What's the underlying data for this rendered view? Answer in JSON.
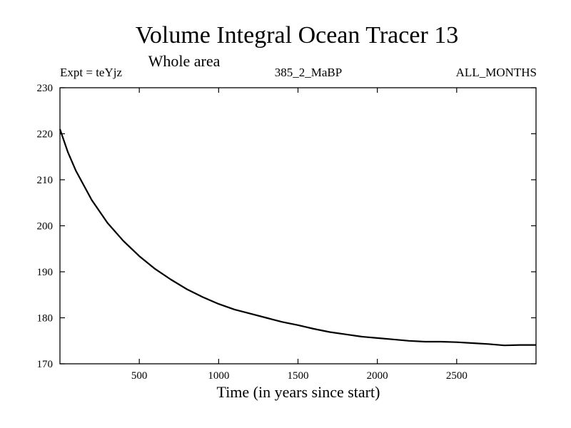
{
  "chart_data": {
    "type": "line",
    "title": "Volume Integral Ocean Tracer 13",
    "subtitle": "Whole area",
    "annotations": {
      "experiment": "Expt = teYjz",
      "run": "385_2_MaBP",
      "months": "ALL_MONTHS"
    },
    "xlabel": "Time (in years since start)",
    "ylabel": "",
    "xlim": [
      0,
      3000
    ],
    "ylim": [
      170,
      230
    ],
    "x_ticks": [
      500,
      1000,
      1500,
      2000,
      2500
    ],
    "y_ticks": [
      170,
      180,
      190,
      200,
      210,
      220,
      230
    ],
    "grid": false,
    "series": [
      {
        "name": "Tracer 13",
        "color": "#000000",
        "x": [
          0,
          50,
          100,
          200,
          300,
          400,
          500,
          600,
          700,
          800,
          900,
          1000,
          1100,
          1200,
          1300,
          1400,
          1500,
          1600,
          1700,
          1800,
          1900,
          2000,
          2100,
          2200,
          2300,
          2400,
          2500,
          2600,
          2700,
          2800,
          2900,
          3000
        ],
        "y": [
          221.0,
          216.0,
          212.0,
          205.6,
          200.6,
          196.7,
          193.4,
          190.6,
          188.3,
          186.2,
          184.5,
          183.0,
          181.8,
          180.9,
          180.0,
          179.1,
          178.4,
          177.6,
          176.9,
          176.4,
          175.9,
          175.6,
          175.3,
          175.0,
          174.8,
          174.8,
          174.7,
          174.5,
          174.3,
          174.0,
          174.1,
          174.1
        ]
      }
    ]
  }
}
